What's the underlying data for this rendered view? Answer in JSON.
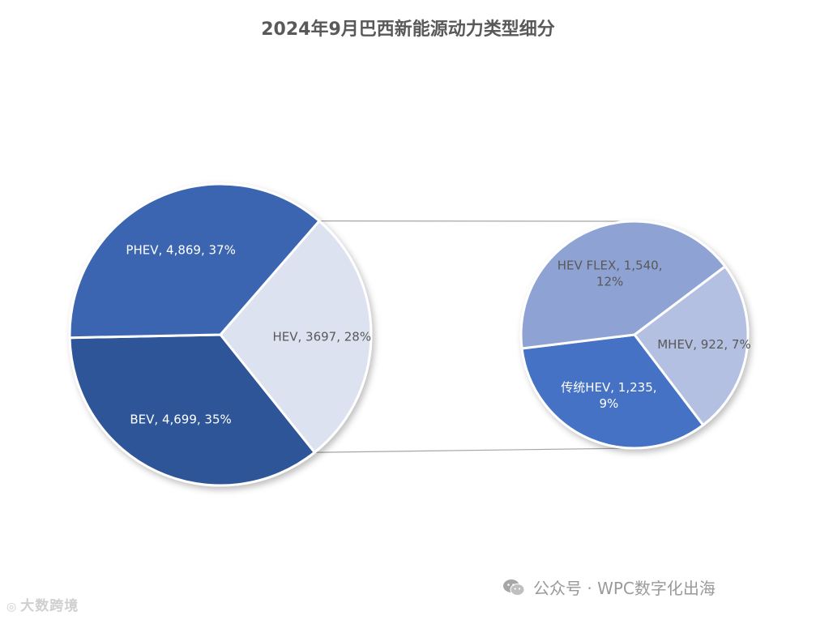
{
  "chart_data": {
    "type": "pie",
    "title": "2024年9月巴西新能源动力类型细分",
    "main_pie": {
      "slices": [
        {
          "name": "HEV",
          "value": 3697,
          "percent": "28%",
          "label": "HEV, 3697, 28%",
          "color": "#DDE2F0",
          "text_color": "#595959"
        },
        {
          "name": "BEV",
          "value": 4699,
          "percent": "35%",
          "label": "BEV, 4,699, 35%",
          "color": "#2F5597",
          "text_color": "#ffffff"
        },
        {
          "name": "PHEV",
          "value": 4869,
          "percent": "37%",
          "label": "PHEV, 4,869, 37%",
          "color": "#3B65B0",
          "text_color": "#ffffff"
        }
      ]
    },
    "secondary_pie": {
      "slices": [
        {
          "name": "MHEV",
          "value": 922,
          "percent": "7%",
          "label": "MHEV, 922, 7%",
          "color": "#B4C0E2",
          "text_color": "#595959"
        },
        {
          "name": "传统HEV",
          "value": 1235,
          "percent": "9%",
          "label": "传统HEV, 1,235, 9%",
          "color": "#4472C4",
          "text_color": "#ffffff"
        },
        {
          "name": "HEV FLEX",
          "value": 1540,
          "percent": "12%",
          "label": "HEV FLEX, 1,540, 12%",
          "color": "#8EA2D4",
          "text_color": "#595959"
        }
      ]
    },
    "connector_color": "#A6A6A6",
    "legend": "none"
  },
  "footer": {
    "logo_text": "大数跨境",
    "logo_icon": "circle-logo-icon",
    "account_text": "公众号 · WPC数字化出海",
    "account_icon": "wechat-icon"
  }
}
